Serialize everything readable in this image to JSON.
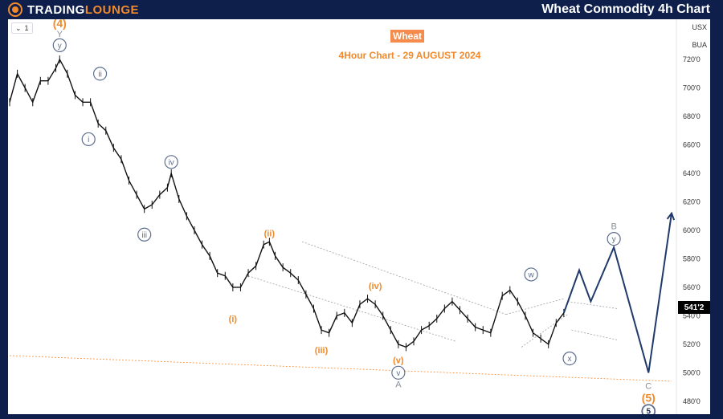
{
  "header": {
    "brand_part1": "TRADING",
    "brand_part2": "LOUNGE",
    "title": "Wheat Commodity 4h Chart"
  },
  "toolbar": {
    "interval_value": "1",
    "chevron_icon": "chevron-down-icon"
  },
  "colors": {
    "frame": "#0d1f4a",
    "accent": "#f08a2c",
    "wave_grey": "#5e6e8e",
    "projection": "#1f3a6b",
    "badge": "#f58c4e"
  },
  "chart_data": {
    "type": "line",
    "symbol": "Wheat",
    "title": "Wheat Commodity 4h Chart",
    "subtitle": "4Hour Chart - 29 AUGUST 2024",
    "currency": "USX",
    "unit": "BUA",
    "last_price_label": "541'2",
    "y_ticks": [
      "720'0",
      "700'0",
      "680'0",
      "660'0",
      "640'0",
      "620'0",
      "600'0",
      "580'0",
      "560'0",
      "540'0",
      "520'0",
      "500'0",
      "480'0"
    ],
    "y_tick_values": [
      720,
      700,
      680,
      660,
      640,
      620,
      600,
      580,
      560,
      540,
      520,
      500,
      480
    ],
    "ylim": [
      472,
      746
    ],
    "x_index_range": [
      0,
      202
    ],
    "grid": false,
    "price_series": [
      [
        0,
        690
      ],
      [
        4,
        710
      ],
      [
        8,
        700
      ],
      [
        12,
        690
      ],
      [
        16,
        705
      ],
      [
        20,
        705
      ],
      [
        24,
        714
      ],
      [
        26,
        720
      ],
      [
        30,
        710
      ],
      [
        34,
        695
      ],
      [
        38,
        690
      ],
      [
        42,
        690
      ],
      [
        46,
        675
      ],
      [
        50,
        670
      ],
      [
        54,
        658
      ],
      [
        58,
        650
      ],
      [
        62,
        635
      ],
      [
        66,
        625
      ],
      [
        70,
        615
      ],
      [
        74,
        618
      ],
      [
        78,
        625
      ],
      [
        82,
        630
      ],
      [
        84,
        640
      ],
      [
        88,
        622
      ],
      [
        92,
        610
      ],
      [
        96,
        600
      ],
      [
        100,
        590
      ],
      [
        104,
        582
      ],
      [
        108,
        570
      ],
      [
        112,
        568
      ],
      [
        116,
        560
      ],
      [
        120,
        560
      ],
      [
        124,
        570
      ],
      [
        128,
        575
      ],
      [
        132,
        590
      ],
      [
        135,
        592
      ],
      [
        138,
        582
      ],
      [
        142,
        574
      ],
      [
        146,
        570
      ],
      [
        150,
        565
      ],
      [
        154,
        555
      ],
      [
        158,
        545
      ],
      [
        162,
        530
      ],
      [
        166,
        528
      ],
      [
        170,
        540
      ],
      [
        174,
        542
      ],
      [
        178,
        535
      ],
      [
        182,
        548
      ],
      [
        186,
        552
      ],
      [
        190,
        548
      ],
      [
        194,
        540
      ],
      [
        198,
        530
      ],
      [
        202,
        520
      ],
      [
        206,
        518
      ],
      [
        210,
        522
      ],
      [
        214,
        530
      ],
      [
        218,
        533
      ],
      [
        222,
        538
      ],
      [
        226,
        545
      ],
      [
        230,
        550
      ],
      [
        234,
        544
      ],
      [
        238,
        538
      ],
      [
        242,
        532
      ],
      [
        246,
        530
      ],
      [
        250,
        528
      ],
      [
        256,
        554
      ],
      [
        260,
        558
      ],
      [
        264,
        550
      ],
      [
        268,
        540
      ],
      [
        272,
        528
      ],
      [
        276,
        524
      ],
      [
        280,
        520
      ],
      [
        284,
        535
      ],
      [
        288,
        542
      ]
    ],
    "projection": [
      [
        288,
        542
      ],
      [
        296,
        572
      ],
      [
        302,
        550
      ],
      [
        314,
        588
      ],
      [
        332,
        500
      ],
      [
        344,
        612
      ]
    ],
    "trendlines": [
      {
        "from": [
          124,
          568
        ],
        "to": [
          232,
          522
        ]
      },
      {
        "from": [
          152,
          592
        ],
        "to": [
          258,
          541
        ]
      },
      {
        "from": [
          258,
          541
        ],
        "to": [
          288,
          552
        ]
      },
      {
        "from": [
          266,
          518
        ],
        "to": [
          290,
          541
        ]
      },
      {
        "from": [
          290,
          550
        ],
        "to": [
          316,
          545
        ]
      },
      {
        "from": [
          292,
          530
        ],
        "to": [
          316,
          523
        ]
      }
    ],
    "support_line": {
      "from": [
        0,
        512
      ],
      "to": [
        344,
        494
      ]
    },
    "wave_labels": [
      {
        "text": "(4)",
        "style": "orange-bold",
        "x": 26,
        "price": 745
      },
      {
        "text": "Y",
        "style": "grey",
        "x": 26,
        "price": 738
      },
      {
        "text": "y",
        "style": "circle",
        "x": 26,
        "price": 730
      },
      {
        "text": "ii",
        "style": "circle",
        "x": 47,
        "price": 710
      },
      {
        "text": "i",
        "style": "circle",
        "x": 41,
        "price": 664
      },
      {
        "text": "iv",
        "style": "circle",
        "x": 84,
        "price": 648
      },
      {
        "text": "iii",
        "style": "circle",
        "x": 70,
        "price": 597
      },
      {
        "text": "(i)",
        "style": "orange",
        "x": 116,
        "price": 538
      },
      {
        "text": "(ii)",
        "style": "orange",
        "x": 135,
        "price": 598
      },
      {
        "text": "(iii)",
        "style": "orange",
        "x": 162,
        "price": 516
      },
      {
        "text": "(iv)",
        "style": "orange",
        "x": 190,
        "price": 561
      },
      {
        "text": "(v)",
        "style": "orange",
        "x": 202,
        "price": 509
      },
      {
        "text": "v",
        "style": "circle",
        "x": 202,
        "price": 500
      },
      {
        "text": "A",
        "style": "grey",
        "x": 202,
        "price": 492
      },
      {
        "text": "w",
        "style": "circle",
        "x": 271,
        "price": 569
      },
      {
        "text": "x",
        "style": "circle",
        "x": 291,
        "price": 510
      },
      {
        "text": "B",
        "style": "grey",
        "x": 314,
        "price": 603
      },
      {
        "text": "y",
        "style": "circle",
        "x": 314,
        "price": 594
      },
      {
        "text": "C",
        "style": "grey",
        "x": 332,
        "price": 491
      },
      {
        "text": "(5)",
        "style": "orange-bold",
        "x": 332,
        "price": 482
      },
      {
        "text": "5",
        "style": "circle-bold",
        "x": 332,
        "price": 473
      }
    ]
  }
}
